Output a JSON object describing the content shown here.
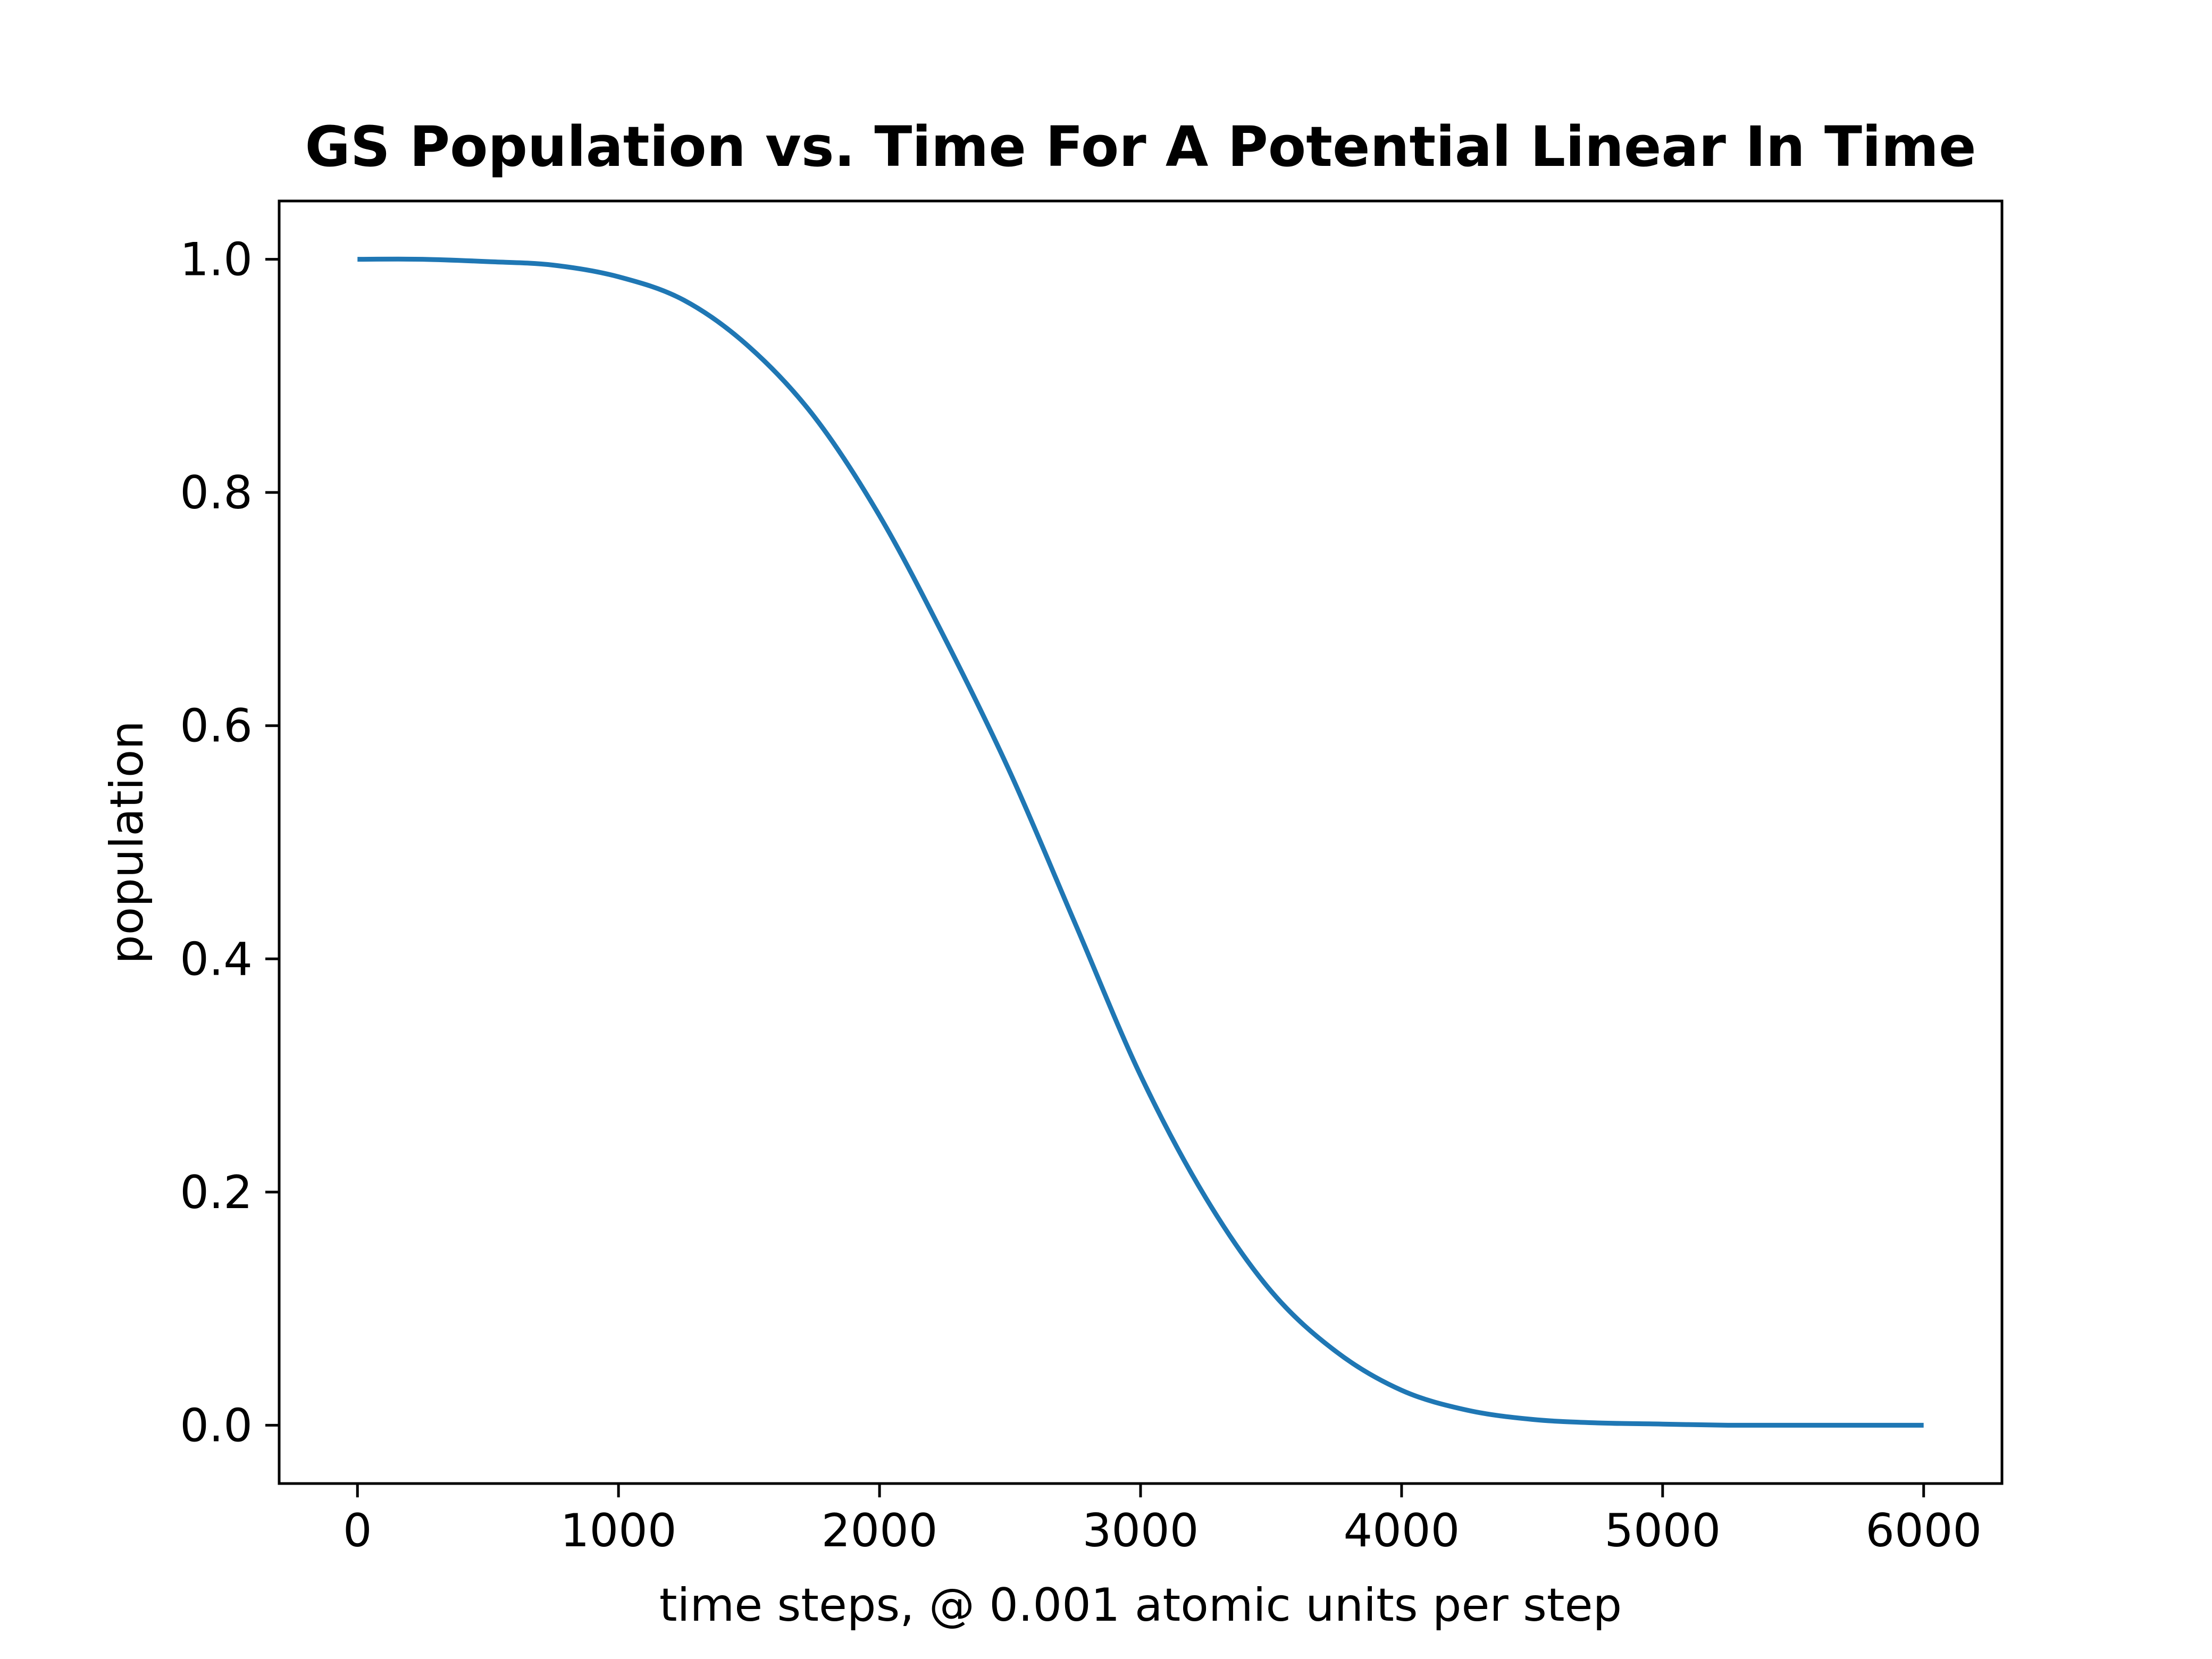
{
  "chart_data": {
    "type": "line",
    "title": "GS Population vs. Time For A Potential Linear In Time",
    "xlabel": "time steps, @ 0.001 atomic units per step",
    "ylabel": "population",
    "xlim": [
      -300,
      6300
    ],
    "ylim": [
      -0.05,
      1.05
    ],
    "xticks": [
      0,
      1000,
      2000,
      3000,
      4000,
      5000,
      6000
    ],
    "xtick_labels": [
      "0",
      "1000",
      "2000",
      "3000",
      "4000",
      "5000",
      "6000"
    ],
    "yticks": [
      0.0,
      0.2,
      0.4,
      0.6,
      0.8,
      1.0
    ],
    "ytick_labels": [
      "0.0",
      "0.2",
      "0.4",
      "0.6",
      "0.8",
      "1.0"
    ],
    "grid": false,
    "series": [
      {
        "color": "#1f77b4",
        "x": [
          0,
          250,
          500,
          750,
          1000,
          1250,
          1500,
          1750,
          2000,
          2250,
          2500,
          2750,
          3000,
          3250,
          3500,
          3750,
          4000,
          4250,
          4500,
          4750,
          5000,
          5250,
          5500,
          5750,
          6000
        ],
        "y": [
          1.0,
          1.0,
          0.998,
          0.995,
          0.985,
          0.965,
          0.925,
          0.865,
          0.78,
          0.675,
          0.56,
          0.43,
          0.3,
          0.195,
          0.115,
          0.063,
          0.03,
          0.013,
          0.005,
          0.002,
          0.001,
          0.0,
          0.0,
          0.0,
          0.0
        ]
      }
    ]
  }
}
